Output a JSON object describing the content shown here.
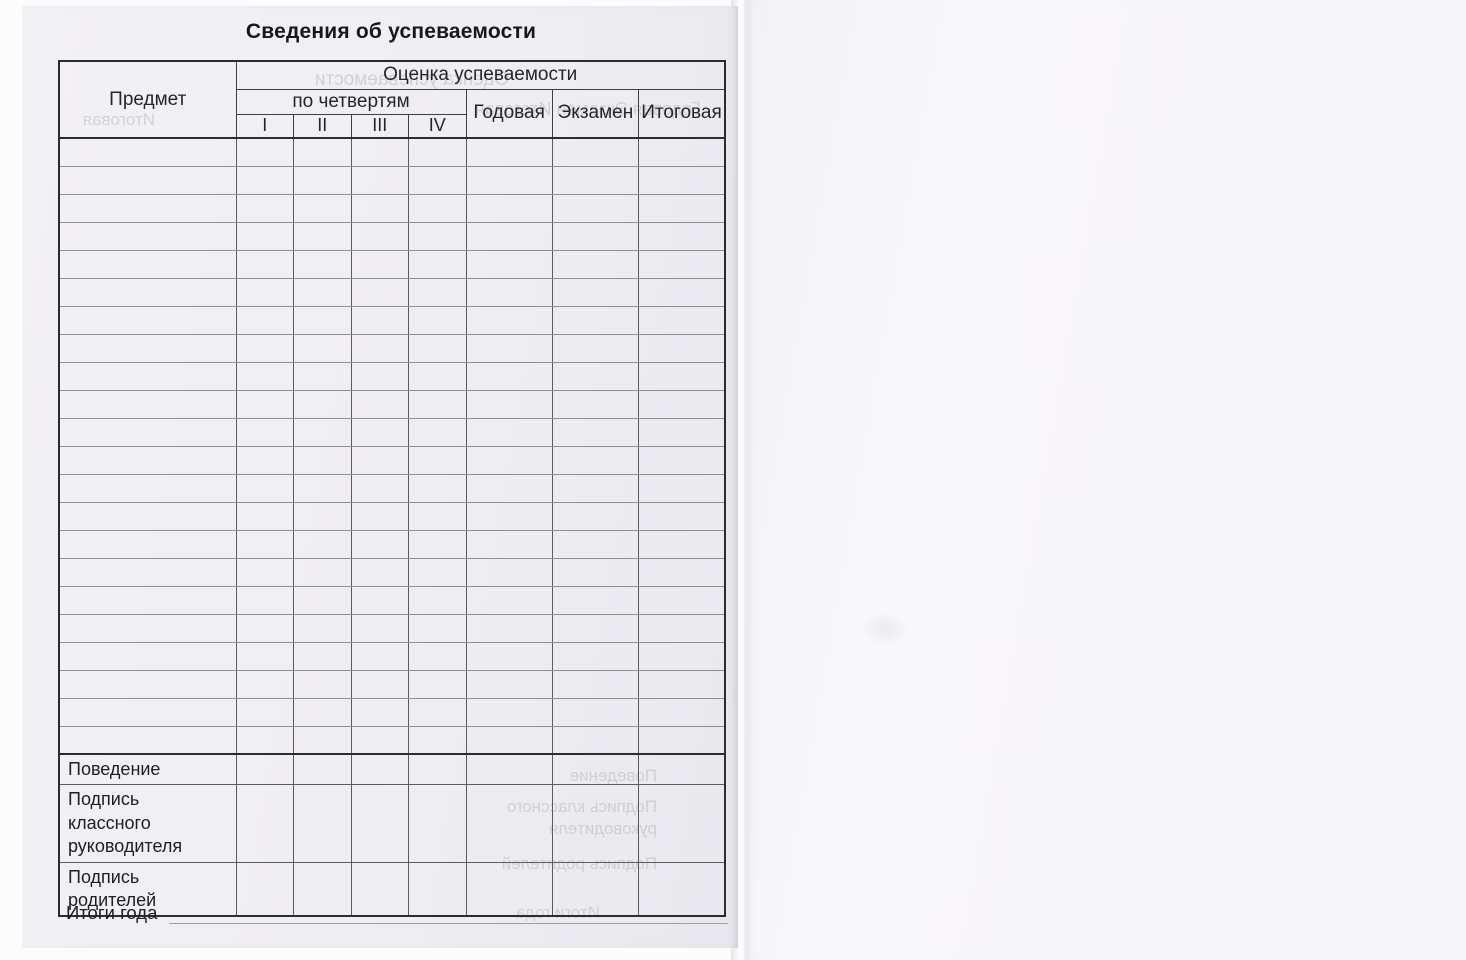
{
  "page": {
    "title": "Сведения об успеваемости"
  },
  "table": {
    "header": {
      "subject": "Предмет",
      "grades_group": "Оценка успеваемости",
      "quarters_group": "по четвертям",
      "quarters": [
        "I",
        "II",
        "III",
        "IV"
      ],
      "annual": "Годовая",
      "exam": "Экзамен",
      "final": "Итоговая"
    },
    "empty_row_count": 22,
    "columns_per_row": 8,
    "footer_rows": [
      {
        "name": "behavior-row",
        "label": "Поведение"
      },
      {
        "name": "class-teacher-signature-row",
        "label": "Подпись классного руководителя"
      },
      {
        "name": "parents-signature-row",
        "label": "Подпись родителей"
      }
    ]
  },
  "footer": {
    "totals_label": "Итоги года"
  },
  "bleedthrough": {
    "header_line1": "Оценка успеваемости",
    "header_line2": "Годовая Экзамен Итоговая",
    "header_line3": "Итоговая",
    "footer_line1": "Поведение",
    "footer_line2": "Подпись классного",
    "footer_line3": "руководителя",
    "footer_line4": "Подпись родителей",
    "footer_line5": "Итоги года"
  },
  "colors": {
    "page_left": "#f0eff3",
    "page_right": "#f7f6fa",
    "line_strong": "#2c2c2c",
    "line_light": "#909090",
    "text": "#202022",
    "bleed": "#aab3a8"
  }
}
